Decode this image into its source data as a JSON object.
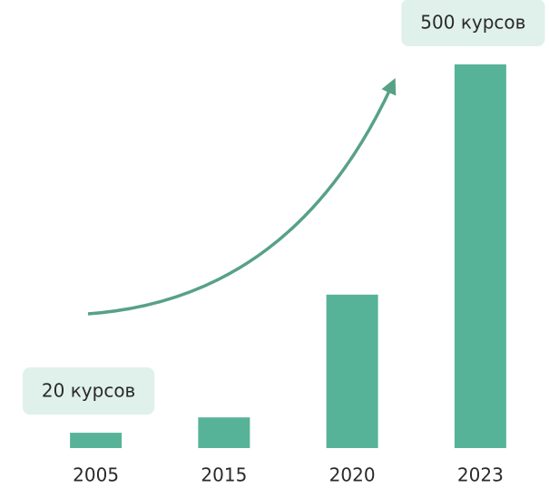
{
  "chart_data": {
    "type": "bar",
    "categories": [
      "2005",
      "2015",
      "2020",
      "2023"
    ],
    "values": [
      20,
      40,
      200,
      500
    ],
    "value_labels": [
      "20 курсов",
      null,
      null,
      "500 курсов"
    ],
    "color": "#57b398"
  }
}
